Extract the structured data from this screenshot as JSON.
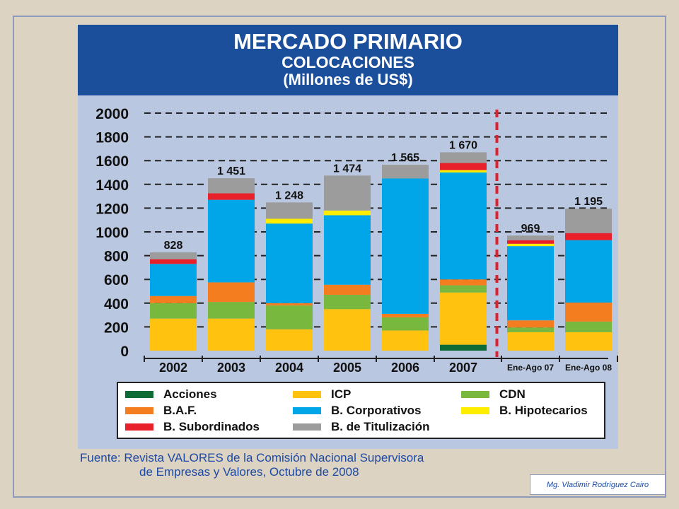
{
  "header": {
    "title_line1": "MERCADO PRIMARIO",
    "title_line2": "COLOCACIONES",
    "title_line3": "(Millones de US$)"
  },
  "chart_data": {
    "type": "bar",
    "stacked": true,
    "title": "MERCADO PRIMARIO COLOCACIONES (Millones de US$)",
    "categories": [
      "2002",
      "2003",
      "2004",
      "2005",
      "2006",
      "2007",
      "Ene-Ago 07",
      "Ene-Ago 08"
    ],
    "totals": [
      "828",
      "1 451",
      "1 248",
      "1 474",
      "1 565",
      "1 670",
      "969",
      "1 195"
    ],
    "ylim": [
      0,
      2000
    ],
    "yticks": [
      "0",
      "200",
      "400",
      "600",
      "800",
      "1000",
      "1200",
      "1400",
      "1600",
      "1800",
      "2000"
    ],
    "grid": true,
    "divider_after_category": "2007",
    "series": [
      {
        "name": "Acciones",
        "color": "#0f6b35",
        "values": [
          0,
          0,
          0,
          0,
          0,
          50,
          0,
          0
        ]
      },
      {
        "name": "ICP",
        "color": "#ffc20e",
        "values": [
          270,
          270,
          180,
          350,
          170,
          440,
          155,
          155
        ]
      },
      {
        "name": "CDN",
        "color": "#79b83f",
        "values": [
          130,
          140,
          200,
          120,
          110,
          60,
          40,
          90
        ]
      },
      {
        "name": "B.A.F.",
        "color": "#f47d20",
        "values": [
          60,
          165,
          20,
          85,
          30,
          50,
          60,
          160
        ]
      },
      {
        "name": "B. Corporativos",
        "color": "#00a6e8",
        "values": [
          270,
          695,
          670,
          585,
          1140,
          900,
          625,
          525
        ]
      },
      {
        "name": "B. Hipotecarios",
        "color": "#ffed00",
        "values": [
          0,
          0,
          40,
          40,
          0,
          20,
          20,
          0
        ]
      },
      {
        "name": "B. Subordinados",
        "color": "#e8202a",
        "values": [
          40,
          55,
          0,
          0,
          0,
          60,
          30,
          60
        ]
      },
      {
        "name": "B. de Titulización",
        "color": "#9c9c9c",
        "values": [
          58,
          126,
          138,
          294,
          115,
          90,
          39,
          205
        ]
      }
    ]
  },
  "source_line1": "Fuente: Revista VALORES de la Comisión Nacional Supervisora",
  "source_line2": "de Empresas y Valores, Octubre de 2008",
  "author": "Mg. Vladimir Rodríguez Cairo"
}
